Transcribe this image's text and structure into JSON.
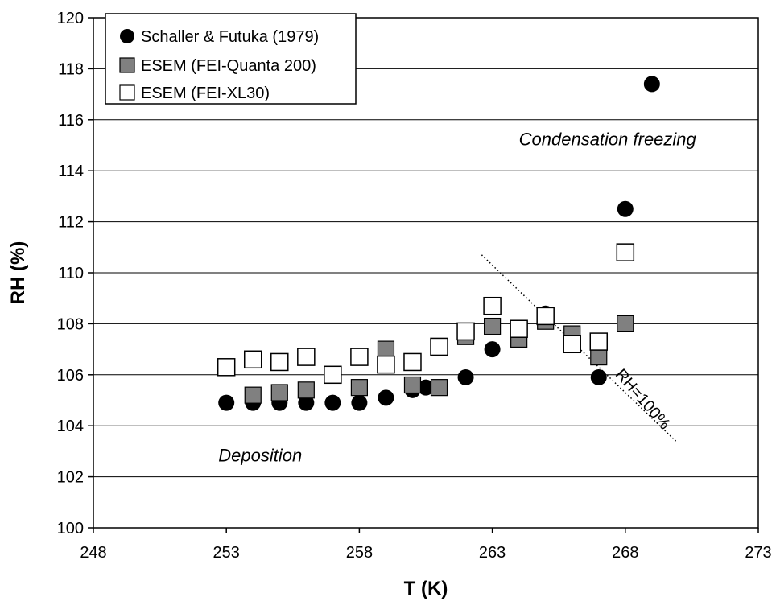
{
  "chart_data": {
    "type": "scatter",
    "xlabel": "T (K)",
    "ylabel": "RH (%)",
    "xlim": [
      248,
      273
    ],
    "ylim": [
      100,
      120
    ],
    "xticks": [
      248,
      253,
      258,
      263,
      268,
      273
    ],
    "yticks": [
      100,
      102,
      104,
      106,
      108,
      110,
      112,
      114,
      116,
      118,
      120
    ],
    "grid": "horizontal",
    "legend_position": "top-left",
    "series": [
      {
        "name": "Schaller & Futuka (1979)",
        "marker": "filled-circle",
        "color": "#000000",
        "points": [
          [
            253.0,
            104.9
          ],
          [
            254.0,
            104.9
          ],
          [
            255.0,
            104.9
          ],
          [
            256.0,
            104.9
          ],
          [
            257.0,
            104.9
          ],
          [
            258.0,
            104.9
          ],
          [
            259.0,
            105.1
          ],
          [
            260.0,
            105.4
          ],
          [
            260.5,
            105.5
          ],
          [
            262.0,
            105.9
          ],
          [
            263.0,
            107.0
          ],
          [
            265.0,
            108.4
          ],
          [
            267.0,
            105.9
          ],
          [
            268.0,
            112.5
          ],
          [
            269.0,
            117.4
          ]
        ]
      },
      {
        "name": "ESEM (FEI-Quanta 200)",
        "marker": "filled-square",
        "color": "#808080",
        "points": [
          [
            254.0,
            105.2
          ],
          [
            255.0,
            105.3
          ],
          [
            256.0,
            105.4
          ],
          [
            258.0,
            105.5
          ],
          [
            259.0,
            107.0
          ],
          [
            260.0,
            105.6
          ],
          [
            261.0,
            105.5
          ],
          [
            262.0,
            107.5
          ],
          [
            263.0,
            107.9
          ],
          [
            264.0,
            107.4
          ],
          [
            265.0,
            108.1
          ],
          [
            266.0,
            107.6
          ],
          [
            267.0,
            106.7
          ],
          [
            268.0,
            108.0
          ]
        ]
      },
      {
        "name": "ESEM (FEI-XL30)",
        "marker": "open-square",
        "color": "#000000",
        "points": [
          [
            253.0,
            106.3
          ],
          [
            254.0,
            106.6
          ],
          [
            255.0,
            106.5
          ],
          [
            256.0,
            106.7
          ],
          [
            257.0,
            106.0
          ],
          [
            258.0,
            106.7
          ],
          [
            259.0,
            106.4
          ],
          [
            260.0,
            106.5
          ],
          [
            261.0,
            107.1
          ],
          [
            262.0,
            107.7
          ],
          [
            263.0,
            108.7
          ],
          [
            264.0,
            107.8
          ],
          [
            265.0,
            108.3
          ],
          [
            266.0,
            107.2
          ],
          [
            267.0,
            107.3
          ],
          [
            268.0,
            110.8
          ]
        ]
      }
    ],
    "reference_line": {
      "label": "RH=100%",
      "style": "dotted",
      "from": [
        262.6,
        110.7
      ],
      "to": [
        269.9,
        103.4
      ]
    },
    "annotations": [
      {
        "text": "Condensation freezing",
        "x": 264,
        "y": 115.0
      },
      {
        "text": "Deposition",
        "x": 252.7,
        "y": 102.6
      }
    ]
  }
}
